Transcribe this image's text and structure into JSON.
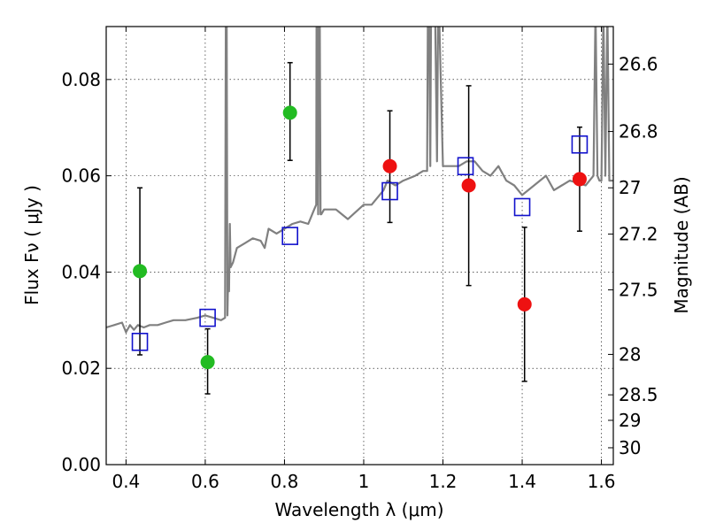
{
  "chart_data": {
    "type": "scatter",
    "xlabel": "Wavelength  λ (μm)",
    "ylabel": "Flux  Fν  ( μJy )",
    "y2label": "Magnitude (AB)",
    "xlim": [
      0.35,
      1.63
    ],
    "ylim": [
      0.0,
      0.091
    ],
    "grid": true,
    "x_ticks": [
      {
        "value": 0.4,
        "label": "0.4"
      },
      {
        "value": 0.6,
        "label": "0.6"
      },
      {
        "value": 0.8,
        "label": "0.8"
      },
      {
        "value": 1.0,
        "label": "1"
      },
      {
        "value": 1.2,
        "label": "1.2"
      },
      {
        "value": 1.4,
        "label": "1.4"
      },
      {
        "value": 1.6,
        "label": "1.6"
      }
    ],
    "y_ticks": [
      {
        "value": 0.0,
        "label": "0.00"
      },
      {
        "value": 0.02,
        "label": "0.02"
      },
      {
        "value": 0.04,
        "label": "0.04"
      },
      {
        "value": 0.06,
        "label": "0.06"
      },
      {
        "value": 0.08,
        "label": "0.08"
      }
    ],
    "mag_ticks": [
      {
        "flux": 0.0832,
        "label": "26.6"
      },
      {
        "flux": 0.0692,
        "label": "26.8"
      },
      {
        "flux": 0.0575,
        "label": "27"
      },
      {
        "flux": 0.0479,
        "label": "27.2"
      },
      {
        "flux": 0.0363,
        "label": "27.5"
      },
      {
        "flux": 0.0229,
        "label": "28"
      },
      {
        "flux": 0.0145,
        "label": "28.5"
      },
      {
        "flux": 0.0092,
        "label": "29"
      },
      {
        "flux": 0.0035,
        "label": "30"
      }
    ],
    "series": [
      {
        "marker": "circle",
        "color": "#22bb22",
        "points": [
          {
            "x": 0.435,
            "y": 0.0402,
            "yerr_low": 0.0228,
            "yerr_high": 0.0575
          },
          {
            "x": 0.606,
            "y": 0.0213,
            "yerr_low": 0.0147,
            "yerr_high": 0.0282
          },
          {
            "x": 0.814,
            "y": 0.0731,
            "yerr_low": 0.0632,
            "yerr_high": 0.0835
          }
        ]
      },
      {
        "marker": "circle",
        "color": "#ee1111",
        "points": [
          {
            "x": 1.066,
            "y": 0.062,
            "yerr_low": 0.0503,
            "yerr_high": 0.0735
          },
          {
            "x": 1.265,
            "y": 0.058,
            "yerr_low": 0.0372,
            "yerr_high": 0.0787
          },
          {
            "x": 1.406,
            "y": 0.0333,
            "yerr_low": 0.0173,
            "yerr_high": 0.0493
          },
          {
            "x": 1.545,
            "y": 0.0593,
            "yerr_low": 0.0485,
            "yerr_high": 0.0701
          }
        ]
      },
      {
        "marker": "open-square",
        "color": "#1111cc",
        "points": [
          {
            "x": 0.435,
            "y": 0.0255
          },
          {
            "x": 0.606,
            "y": 0.0305
          },
          {
            "x": 0.814,
            "y": 0.0475
          },
          {
            "x": 1.066,
            "y": 0.0568
          },
          {
            "x": 1.257,
            "y": 0.062
          },
          {
            "x": 1.4,
            "y": 0.0535
          },
          {
            "x": 1.545,
            "y": 0.0665
          }
        ]
      }
    ],
    "spectrum": {
      "color": "#808080",
      "x": [
        0.35,
        0.37,
        0.39,
        0.4,
        0.41,
        0.42,
        0.43,
        0.445,
        0.46,
        0.48,
        0.5,
        0.52,
        0.55,
        0.58,
        0.6,
        0.62,
        0.64,
        0.65,
        0.652,
        0.654,
        0.656,
        0.658,
        0.66,
        0.662,
        0.664,
        0.67,
        0.68,
        0.7,
        0.72,
        0.74,
        0.75,
        0.76,
        0.78,
        0.8,
        0.82,
        0.84,
        0.86,
        0.87,
        0.875,
        0.88,
        0.881,
        0.883,
        0.885,
        0.887,
        0.889,
        0.891,
        0.893,
        0.9,
        0.93,
        0.96,
        1.0,
        1.02,
        1.04,
        1.05,
        1.06,
        1.08,
        1.1,
        1.13,
        1.15,
        1.16,
        1.162,
        1.165,
        1.168,
        1.17,
        1.18,
        1.185,
        1.188,
        1.19,
        1.2,
        1.22,
        1.24,
        1.26,
        1.28,
        1.3,
        1.32,
        1.34,
        1.36,
        1.38,
        1.4,
        1.43,
        1.46,
        1.48,
        1.5,
        1.52,
        1.56,
        1.58,
        1.585,
        1.59,
        1.595,
        1.6,
        1.605,
        1.61,
        1.615,
        1.62,
        1.63
      ],
      "y": [
        0.0285,
        0.029,
        0.0295,
        0.0275,
        0.029,
        0.028,
        0.029,
        0.0285,
        0.029,
        0.029,
        0.0295,
        0.03,
        0.03,
        0.0305,
        0.031,
        0.0305,
        0.03,
        0.0305,
        0.095,
        0.095,
        0.031,
        0.04,
        0.036,
        0.05,
        0.041,
        0.042,
        0.045,
        0.046,
        0.047,
        0.0465,
        0.045,
        0.049,
        0.048,
        0.049,
        0.05,
        0.0505,
        0.05,
        0.052,
        0.053,
        0.054,
        0.095,
        0.095,
        0.052,
        0.095,
        0.095,
        0.052,
        0.052,
        0.053,
        0.053,
        0.051,
        0.054,
        0.054,
        0.056,
        0.057,
        0.059,
        0.058,
        0.059,
        0.06,
        0.061,
        0.061,
        0.095,
        0.095,
        0.062,
        0.095,
        0.095,
        0.063,
        0.095,
        0.095,
        0.062,
        0.062,
        0.062,
        0.063,
        0.063,
        0.061,
        0.06,
        0.062,
        0.059,
        0.058,
        0.056,
        0.058,
        0.06,
        0.057,
        0.058,
        0.059,
        0.058,
        0.06,
        0.095,
        0.06,
        0.059,
        0.059,
        0.095,
        0.06,
        0.095,
        0.059,
        0.059
      ]
    }
  }
}
